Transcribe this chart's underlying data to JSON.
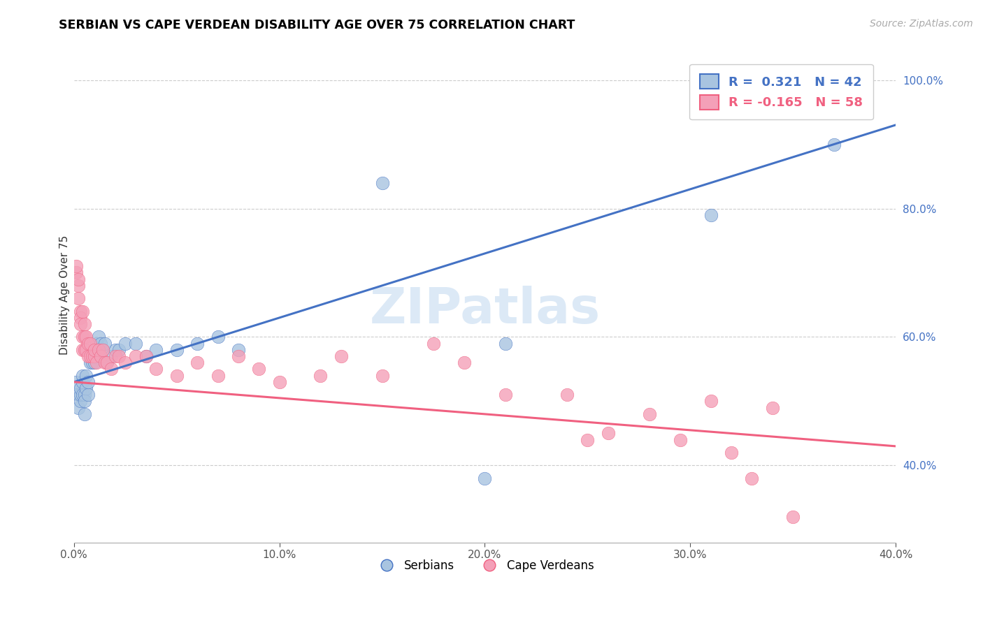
{
  "title": "SERBIAN VS CAPE VERDEAN DISABILITY AGE OVER 75 CORRELATION CHART",
  "source_text": "Source: ZipAtlas.com",
  "ylabel": "Disability Age Over 75",
  "xlim": [
    0.0,
    0.4
  ],
  "ylim": [
    0.28,
    1.05
  ],
  "xticks": [
    0.0,
    0.1,
    0.2,
    0.3,
    0.4
  ],
  "xtick_labels": [
    "0.0%",
    "10.0%",
    "20.0%",
    "30.0%",
    "40.0%"
  ],
  "yticks": [
    0.4,
    0.6,
    0.8,
    1.0
  ],
  "ytick_labels": [
    "40.0%",
    "60.0%",
    "80.0%",
    "100.0%"
  ],
  "serbian_color": "#a8c4e0",
  "cape_verdean_color": "#f4a0b8",
  "serbian_line_color": "#4472c4",
  "cape_verdean_line_color": "#f06080",
  "legend_serbian_label": "R =  0.321   N = 42",
  "legend_cape_label": "R = -0.165   N = 58",
  "legend1_label": "Serbians",
  "legend2_label": "Cape Verdeans",
  "watermark": "ZIPatlas",
  "grid_color": "#cccccc",
  "serbian_x": [
    0.001,
    0.002,
    0.002,
    0.003,
    0.003,
    0.003,
    0.004,
    0.004,
    0.004,
    0.005,
    0.005,
    0.005,
    0.006,
    0.006,
    0.007,
    0.007,
    0.008,
    0.009,
    0.01,
    0.01,
    0.011,
    0.012,
    0.013,
    0.014,
    0.015,
    0.016,
    0.018,
    0.02,
    0.022,
    0.025,
    0.03,
    0.035,
    0.04,
    0.05,
    0.06,
    0.07,
    0.08,
    0.15,
    0.2,
    0.21,
    0.31,
    0.37
  ],
  "serbian_y": [
    0.53,
    0.51,
    0.49,
    0.5,
    0.51,
    0.52,
    0.51,
    0.53,
    0.54,
    0.51,
    0.48,
    0.5,
    0.52,
    0.54,
    0.51,
    0.53,
    0.56,
    0.56,
    0.56,
    0.57,
    0.59,
    0.6,
    0.59,
    0.58,
    0.59,
    0.56,
    0.57,
    0.58,
    0.58,
    0.59,
    0.59,
    0.57,
    0.58,
    0.58,
    0.59,
    0.6,
    0.58,
    0.84,
    0.38,
    0.59,
    0.79,
    0.9
  ],
  "cape_x": [
    0.001,
    0.001,
    0.002,
    0.002,
    0.002,
    0.003,
    0.003,
    0.003,
    0.004,
    0.004,
    0.004,
    0.005,
    0.005,
    0.005,
    0.006,
    0.006,
    0.007,
    0.007,
    0.008,
    0.008,
    0.009,
    0.01,
    0.01,
    0.011,
    0.012,
    0.013,
    0.014,
    0.015,
    0.016,
    0.018,
    0.02,
    0.022,
    0.025,
    0.03,
    0.035,
    0.04,
    0.05,
    0.06,
    0.07,
    0.08,
    0.09,
    0.1,
    0.12,
    0.13,
    0.15,
    0.175,
    0.19,
    0.21,
    0.24,
    0.25,
    0.26,
    0.28,
    0.295,
    0.31,
    0.32,
    0.33,
    0.34,
    0.35
  ],
  "cape_y": [
    0.7,
    0.71,
    0.68,
    0.69,
    0.66,
    0.64,
    0.63,
    0.62,
    0.64,
    0.6,
    0.58,
    0.6,
    0.58,
    0.62,
    0.58,
    0.6,
    0.59,
    0.57,
    0.57,
    0.59,
    0.57,
    0.57,
    0.58,
    0.56,
    0.58,
    0.57,
    0.58,
    0.56,
    0.56,
    0.55,
    0.57,
    0.57,
    0.56,
    0.57,
    0.57,
    0.55,
    0.54,
    0.56,
    0.54,
    0.57,
    0.55,
    0.53,
    0.54,
    0.57,
    0.54,
    0.59,
    0.56,
    0.51,
    0.51,
    0.44,
    0.45,
    0.48,
    0.44,
    0.5,
    0.42,
    0.38,
    0.49,
    0.32
  ]
}
